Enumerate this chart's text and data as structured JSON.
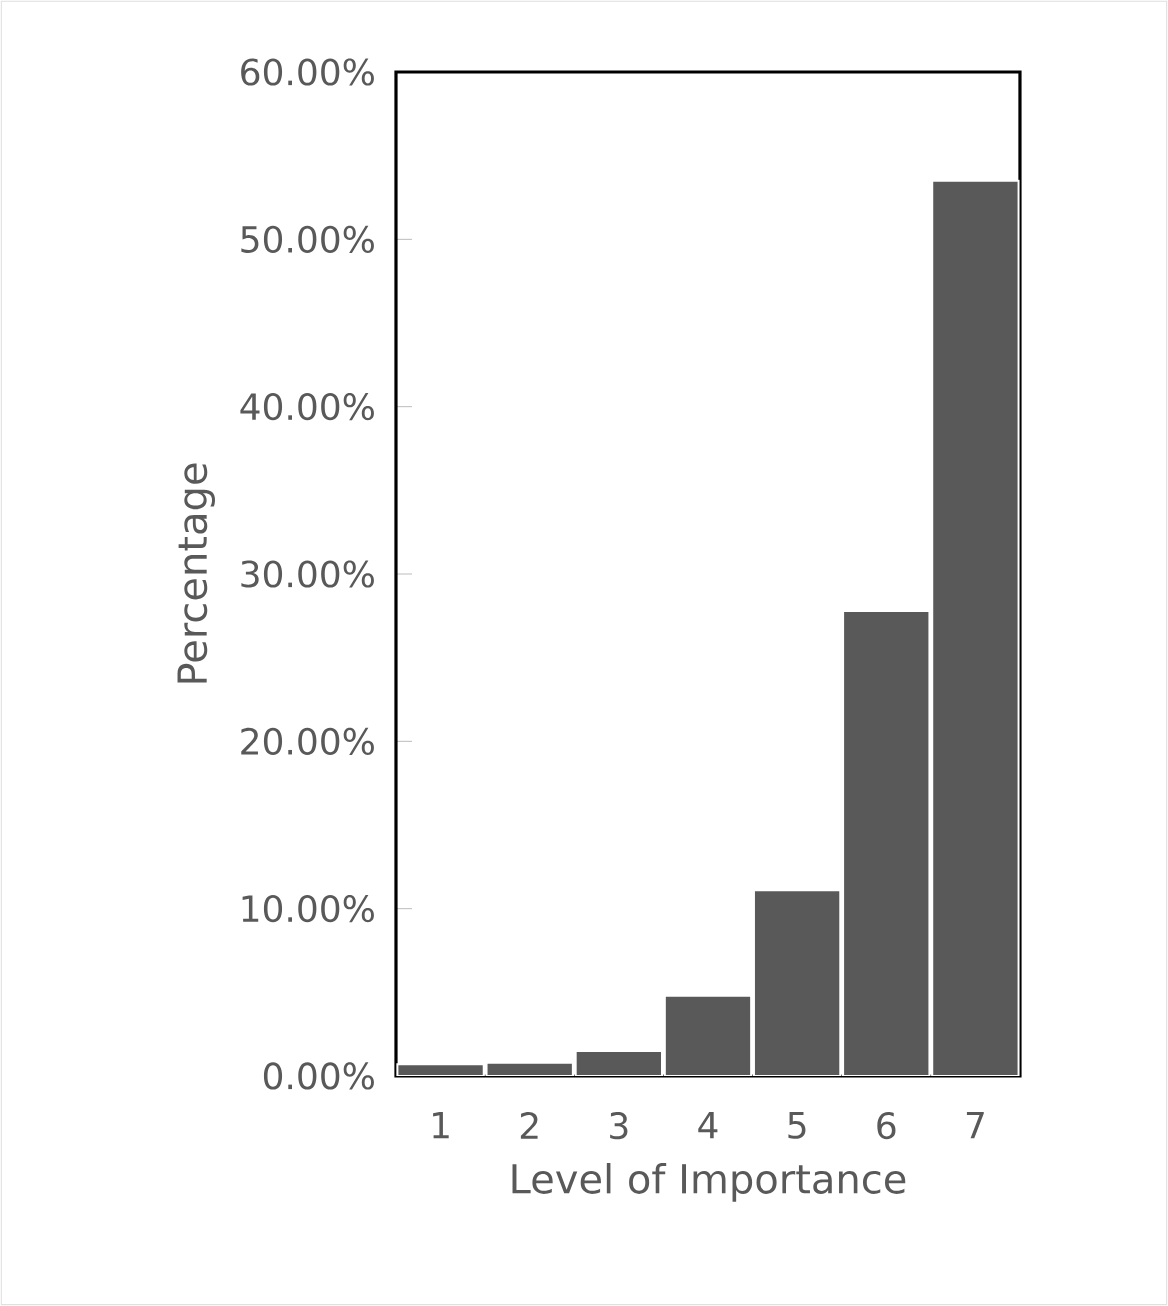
{
  "chart_data": {
    "type": "bar",
    "xlabel": "Level of Importance",
    "ylabel": "Percentage",
    "categories": [
      "1",
      "2",
      "3",
      "4",
      "5",
      "6",
      "7"
    ],
    "values": [
      0.7,
      0.8,
      1.5,
      4.8,
      11.1,
      27.8,
      53.5
    ],
    "color": "#595959",
    "ylim": [
      0,
      60
    ],
    "yticks": [
      {
        "value": 0,
        "label": "0.00%"
      },
      {
        "value": 10,
        "label": "10.00%"
      },
      {
        "value": 20,
        "label": "20.00%"
      },
      {
        "value": 30,
        "label": "30.00%"
      },
      {
        "value": 40,
        "label": "40.00%"
      },
      {
        "value": 50,
        "label": "50.00%"
      },
      {
        "value": 60,
        "label": "60.00%"
      }
    ],
    "grid": false
  }
}
